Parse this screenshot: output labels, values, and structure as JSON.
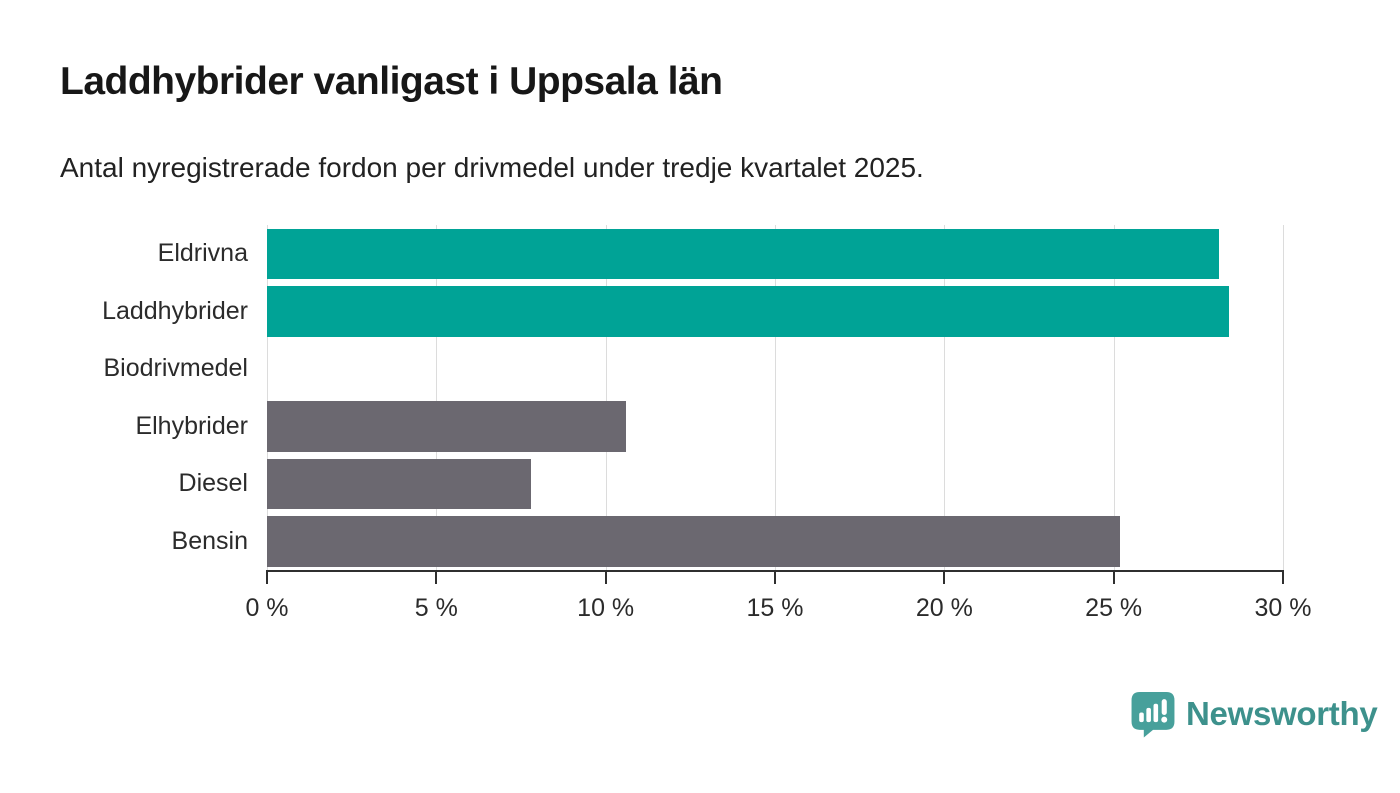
{
  "header": {
    "title": "Laddhybrider vanligast i Uppsala län",
    "subtitle": "Antal nyregistrerade fordon per drivmedel under tredje kvartalet 2025."
  },
  "chart_data": {
    "type": "bar",
    "orientation": "horizontal",
    "title": "Laddhybrider vanligast i Uppsala län",
    "subtitle": "Antal nyregistrerade fordon per drivmedel under tredje kvartalet 2025.",
    "categories": [
      "Eldrivna",
      "Laddhybrider",
      "Biodrivmedel",
      "Elhybrider",
      "Diesel",
      "Bensin"
    ],
    "values": [
      28.1,
      28.4,
      0,
      10.6,
      7.8,
      25.2
    ],
    "unit": "%",
    "xlabel": "",
    "ylabel": "",
    "xlim": [
      0,
      30
    ],
    "xticks": [
      0,
      5,
      10,
      15,
      20,
      25,
      30
    ],
    "xtick_labels": [
      "0 %",
      "5 %",
      "10 %",
      "15 %",
      "20 %",
      "25 %",
      "30 %"
    ],
    "grid": true,
    "legend": "none",
    "bar_colors": [
      "#00a396",
      "#00a396",
      "#6b6870",
      "#6b6870",
      "#6b6870",
      "#6b6870"
    ],
    "highlight_color": "#00a396",
    "default_color": "#6b6870",
    "gridline_color": "#dcdcdc",
    "axis_color": "#2f2f2f",
    "text_color": "#2b2b2b"
  },
  "footer": {
    "brand": "Newsworthy",
    "brand_color": "#3d918c",
    "icon_color": "#47a09b"
  }
}
